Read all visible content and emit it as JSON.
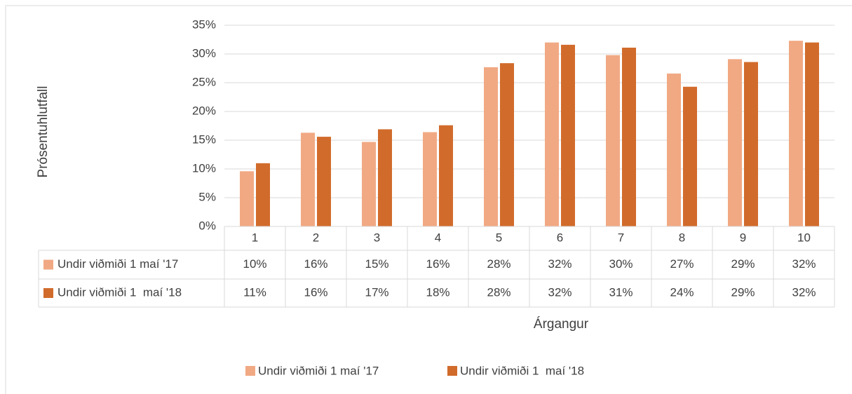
{
  "chart_data": {
    "type": "bar",
    "y_label": "Prósentuhlutfall",
    "x_label": "Árgangur",
    "categories": [
      "1",
      "2",
      "3",
      "4",
      "5",
      "6",
      "7",
      "8",
      "9",
      "10"
    ],
    "series": [
      {
        "name": "Undir viðmiði 1 maí '17",
        "color": "#f1a983",
        "values": [
          9.6,
          16.3,
          14.7,
          16.4,
          27.7,
          32.0,
          29.8,
          26.6,
          29.1,
          32.3
        ],
        "value_labels": [
          "10%",
          "16%",
          "15%",
          "16%",
          "28%",
          "32%",
          "30%",
          "27%",
          "29%",
          "32%"
        ]
      },
      {
        "name": "Undir viðmiði 1  maí '18",
        "color": "#d16b2b",
        "values": [
          11.0,
          15.6,
          16.9,
          17.6,
          28.4,
          31.6,
          31.1,
          24.3,
          28.6,
          32.0
        ],
        "value_labels": [
          "11%",
          "16%",
          "17%",
          "18%",
          "28%",
          "32%",
          "31%",
          "24%",
          "29%",
          "32%"
        ]
      }
    ],
    "ylim": [
      0,
      35
    ],
    "yticks": [
      {
        "value": 0,
        "label": "0%"
      },
      {
        "value": 5,
        "label": "5%"
      },
      {
        "value": 10,
        "label": "10%"
      },
      {
        "value": 15,
        "label": "15%"
      },
      {
        "value": 20,
        "label": "20%"
      },
      {
        "value": 25,
        "label": "25%"
      },
      {
        "value": 30,
        "label": "30%"
      },
      {
        "value": 35,
        "label": "35%"
      }
    ],
    "grid": true,
    "legend": "bottom",
    "data_table": true
  }
}
